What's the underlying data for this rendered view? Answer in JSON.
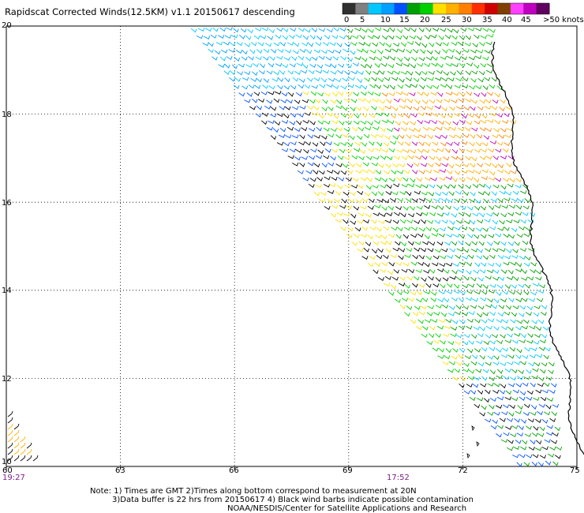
{
  "title": "Rapidscat Corrected Winds(12.5KM) v1.1 20150617 descending",
  "colorbar": {
    "labels": [
      "0",
      "5",
      "10",
      "15",
      "20",
      "25",
      "30",
      "35",
      "40",
      "45",
      ">50 knots"
    ],
    "colors": [
      "#303030",
      "#808080",
      "#00c8ff",
      "#00a0ff",
      "#0050ff",
      "#00a000",
      "#00d000",
      "#ffe000",
      "#ffb000",
      "#ff8000",
      "#ff3000",
      "#d00000",
      "#804000",
      "#ff40ff",
      "#c000c0",
      "#600060"
    ]
  },
  "lat_labels": [
    "20",
    "18",
    "16",
    "14",
    "12",
    "10"
  ],
  "lon_labels": [
    "60",
    "63",
    "66",
    "69",
    "72",
    "75"
  ],
  "time_labels": [
    "19:27",
    "17:52"
  ],
  "notes": [
    "Note: 1) Times are GMT 2)Times along bottom correspond to measurement at 20N",
    "3)Data buffer is 22 hrs from 20150617 4) Black wind barbs indicate possible contamination",
    "NOAA/NESDIS/Center for Satellite Applications and Research"
  ],
  "colors": {
    "coast": "#000000",
    "grid": "#000000"
  }
}
